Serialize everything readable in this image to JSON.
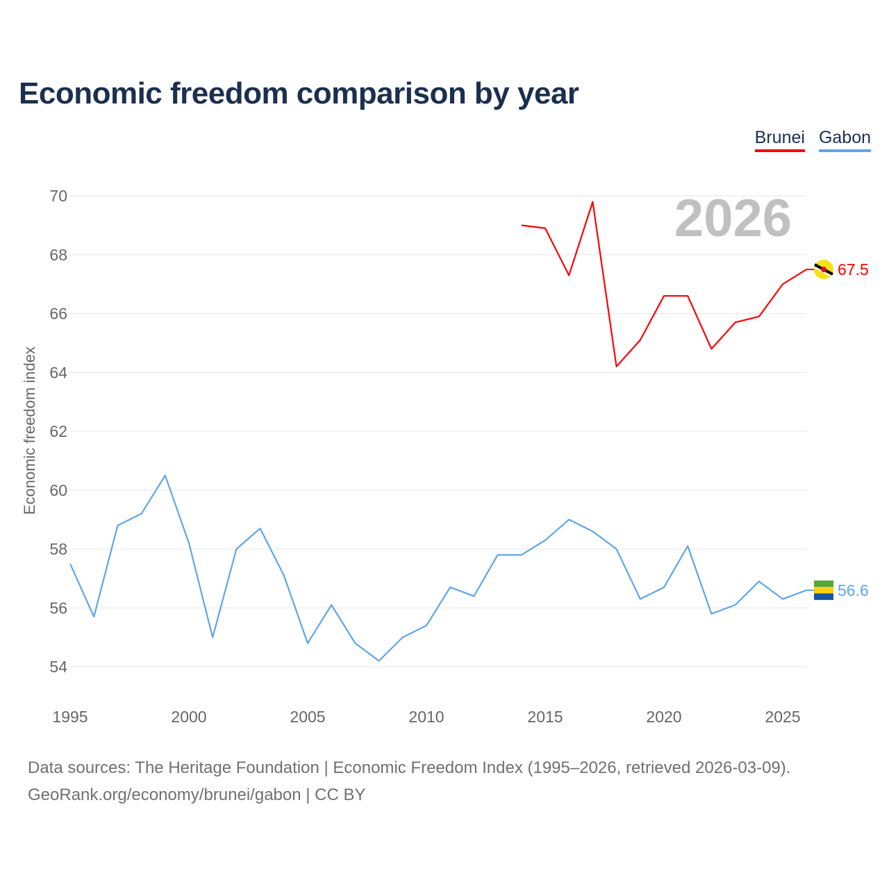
{
  "title": "Economic freedom comparison by year",
  "footer": {
    "line1": "Data sources: The Heritage Foundation | Economic Freedom Index (1995–2026, retrieved 2026-03-09).",
    "line2": "GeoRank.org/economy/brunei/gabon | CC BY"
  },
  "chart_data": {
    "type": "line",
    "title": "Economic freedom comparison by year",
    "xlabel": "",
    "ylabel": "Economic freedom index",
    "watermark_year": "2026",
    "xlim": [
      1995,
      2026
    ],
    "ylim": [
      53,
      71
    ],
    "x_ticks": [
      "1995",
      "2000",
      "2005",
      "2010",
      "2015",
      "2020",
      "2025"
    ],
    "y_ticks": [
      "54",
      "56",
      "58",
      "60",
      "62",
      "64",
      "66",
      "68",
      "70"
    ],
    "grid": true,
    "legend_position": "top-right",
    "series": [
      {
        "name": "Brunei",
        "color": "#ff0000",
        "end_label": "67.5",
        "x": [
          2014,
          2015,
          2016,
          2017,
          2018,
          2019,
          2020,
          2021,
          2022,
          2023,
          2024,
          2025,
          2026
        ],
        "values": [
          69.0,
          68.9,
          67.3,
          69.8,
          64.2,
          65.1,
          66.6,
          66.6,
          64.8,
          65.7,
          65.9,
          67.0,
          67.5
        ]
      },
      {
        "name": "Gabon",
        "color": "#5ea5e8",
        "end_label": "56.6",
        "x": [
          1995,
          1996,
          1997,
          1998,
          1999,
          2000,
          2001,
          2002,
          2003,
          2004,
          2005,
          2006,
          2007,
          2008,
          2009,
          2010,
          2011,
          2012,
          2013,
          2014,
          2015,
          2016,
          2017,
          2018,
          2019,
          2020,
          2021,
          2022,
          2023,
          2024,
          2025,
          2026
        ],
        "values": [
          57.5,
          55.7,
          58.8,
          59.2,
          60.5,
          58.2,
          55.0,
          58.0,
          58.7,
          57.1,
          54.8,
          56.1,
          54.8,
          54.2,
          55.0,
          55.4,
          56.7,
          56.4,
          57.8,
          57.8,
          58.3,
          59.0,
          58.6,
          58.0,
          56.3,
          56.7,
          58.1,
          55.8,
          56.1,
          56.9,
          56.3,
          56.6
        ]
      }
    ]
  }
}
